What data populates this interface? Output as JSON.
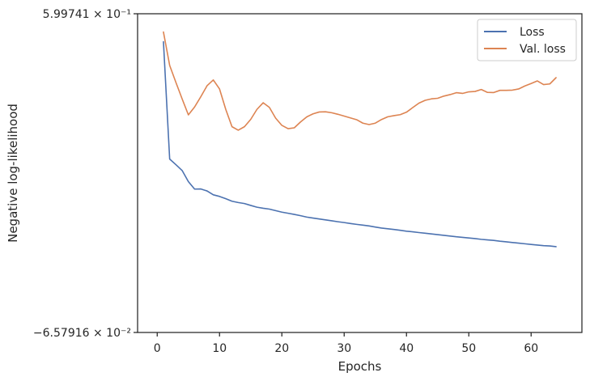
{
  "chart_data": {
    "type": "line",
    "xlabel": "Epochs",
    "ylabel": "Negative log-likelihood",
    "xlim": [
      -3.15,
      68.15
    ],
    "ylim": [
      -0.0657916,
      0.599741
    ],
    "yscale": "symlog",
    "y_tick_labels": [
      "5.99741 × 10⁻¹",
      "−6.57916 × 10⁻²"
    ],
    "x_ticks": [
      0,
      10,
      20,
      30,
      40,
      50,
      60
    ],
    "x_tick_labels": [
      "0",
      "10",
      "20",
      "30",
      "40",
      "50",
      "60"
    ],
    "legend_position": "top-right",
    "grid": false,
    "series": [
      {
        "name": "Loss",
        "color": "#4c72b0",
        "x": [
          1,
          2,
          3,
          4,
          5,
          6,
          7,
          8,
          9,
          10,
          11,
          12,
          13,
          14,
          15,
          16,
          17,
          18,
          19,
          20,
          21,
          22,
          23,
          24,
          25,
          26,
          27,
          28,
          29,
          30,
          31,
          32,
          33,
          34,
          35,
          36,
          37,
          38,
          39,
          40,
          41,
          42,
          43,
          44,
          45,
          46,
          47,
          48,
          49,
          50,
          51,
          52,
          53,
          54,
          55,
          56,
          57,
          58,
          59,
          60,
          61,
          62,
          63,
          64
        ],
        "y": [
          0.5414,
          0.2963,
          0.2846,
          0.2724,
          0.2493,
          0.2336,
          0.2339,
          0.2297,
          0.2217,
          0.2183,
          0.2136,
          0.2083,
          0.2055,
          0.2034,
          0.1995,
          0.1958,
          0.1936,
          0.1918,
          0.1886,
          0.1855,
          0.1831,
          0.1807,
          0.1781,
          0.1751,
          0.1731,
          0.1712,
          0.1693,
          0.1674,
          0.1654,
          0.1637,
          0.1617,
          0.1599,
          0.1583,
          0.1566,
          0.1543,
          0.1522,
          0.1507,
          0.1492,
          0.1475,
          0.1457,
          0.1444,
          0.1428,
          0.1414,
          0.1399,
          0.1385,
          0.137,
          0.1355,
          0.134,
          0.1328,
          0.1315,
          0.1302,
          0.1287,
          0.1275,
          0.1264,
          0.1248,
          0.1235,
          0.1221,
          0.1207,
          0.1194,
          0.118,
          0.1167,
          0.1154,
          0.1148,
          0.1133
        ]
      },
      {
        "name": "Val. loss",
        "color": "#dd8452",
        "x": [
          1,
          2,
          3,
          4,
          5,
          6,
          7,
          8,
          9,
          10,
          11,
          12,
          13,
          14,
          15,
          16,
          17,
          18,
          19,
          20,
          21,
          22,
          23,
          24,
          25,
          26,
          27,
          28,
          29,
          30,
          31,
          32,
          33,
          34,
          35,
          36,
          37,
          38,
          39,
          40,
          41,
          42,
          43,
          44,
          45,
          46,
          47,
          48,
          49,
          50,
          51,
          52,
          53,
          54,
          55,
          56,
          57,
          58,
          59,
          60,
          61,
          62,
          63,
          64
        ],
        "y": [
          0.5616,
          0.4918,
          0.4564,
          0.4219,
          0.3886,
          0.4051,
          0.4266,
          0.4495,
          0.4615,
          0.4427,
          0.4,
          0.3639,
          0.3566,
          0.3639,
          0.3791,
          0.4,
          0.4139,
          0.4042,
          0.3818,
          0.3667,
          0.3598,
          0.3616,
          0.3738,
          0.3844,
          0.3907,
          0.3946,
          0.3951,
          0.393,
          0.3898,
          0.3861,
          0.3823,
          0.3785,
          0.3713,
          0.3683,
          0.3713,
          0.3789,
          0.3846,
          0.387,
          0.389,
          0.3942,
          0.4038,
          0.4131,
          0.419,
          0.422,
          0.4232,
          0.4278,
          0.4309,
          0.4349,
          0.4334,
          0.4367,
          0.4375,
          0.4416,
          0.4355,
          0.4352,
          0.4398,
          0.4398,
          0.4403,
          0.4427,
          0.449,
          0.4541,
          0.4595,
          0.4518,
          0.4532,
          0.4663
        ]
      }
    ]
  }
}
